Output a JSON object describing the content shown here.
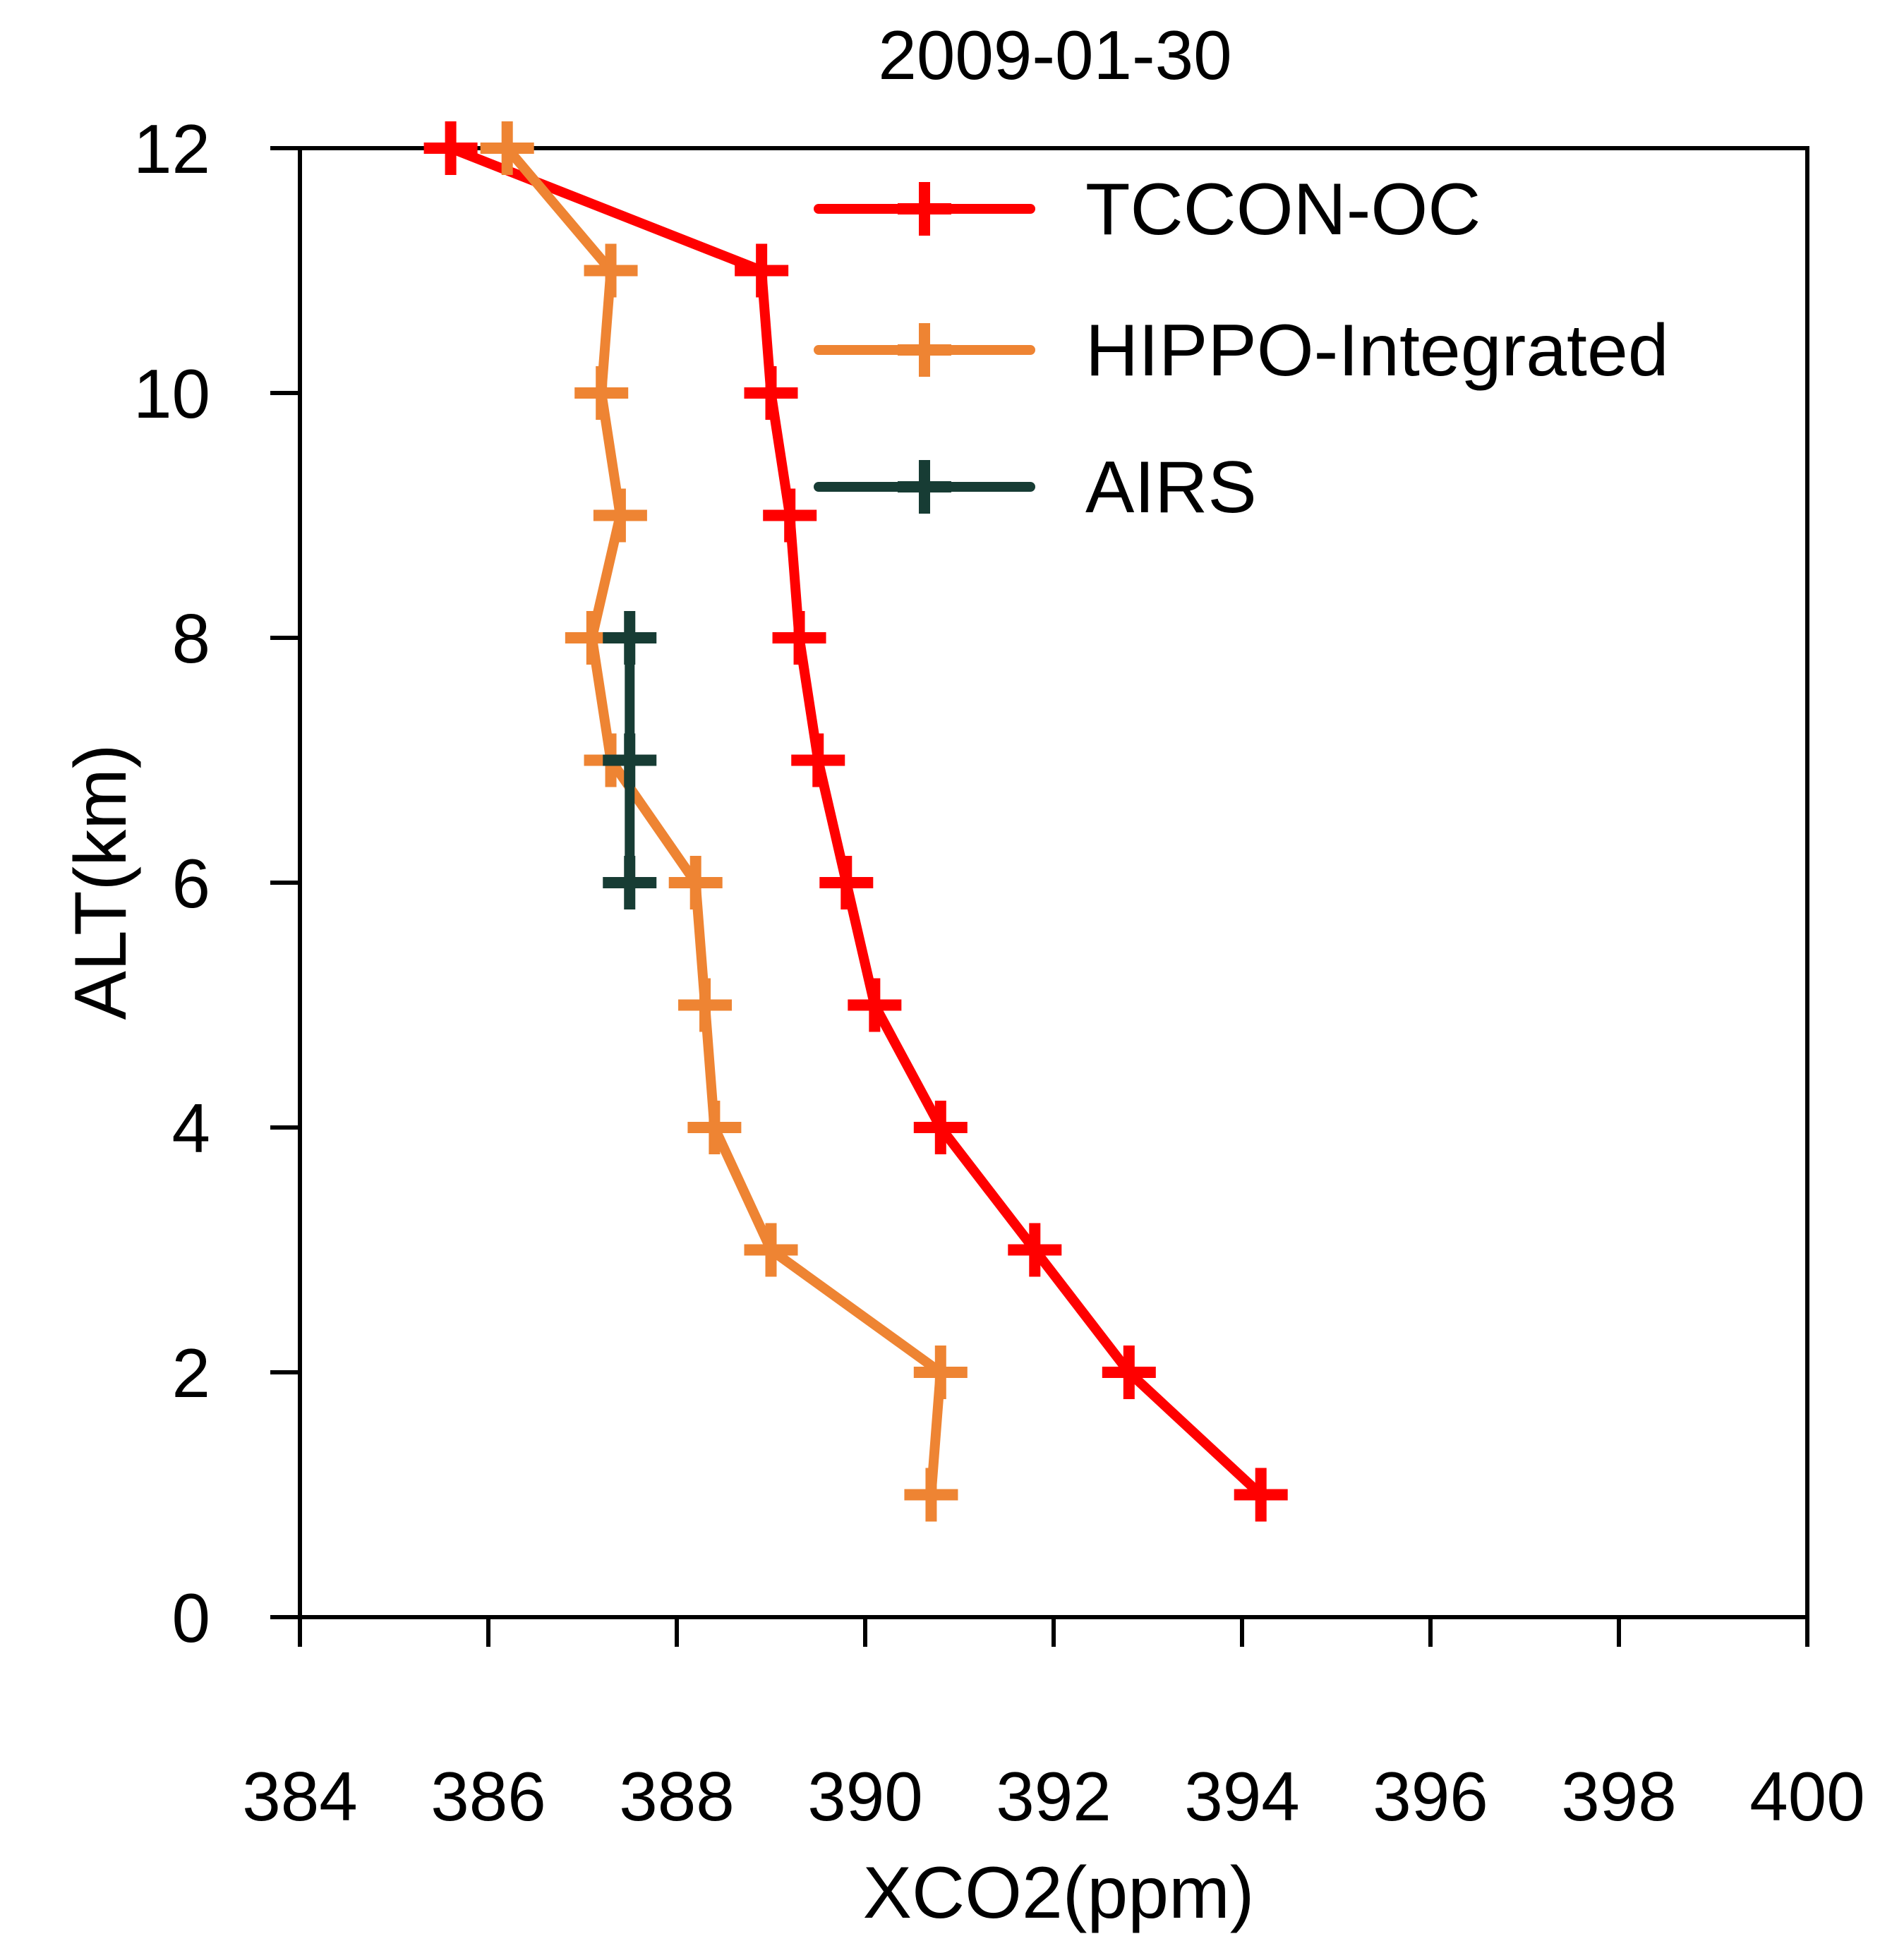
{
  "chart_data": {
    "type": "line",
    "title": "2009-01-30",
    "xlabel": "XCO2(ppm)",
    "ylabel": "ALT(km)",
    "xlim": [
      384,
      400
    ],
    "ylim": [
      0,
      12
    ],
    "xticks": [
      384,
      386,
      388,
      390,
      392,
      394,
      396,
      398,
      400
    ],
    "yticks": [
      0,
      2,
      4,
      6,
      8,
      10,
      12
    ],
    "grid": false,
    "legend_position": "top-right",
    "series": [
      {
        "name": "TCCON-OC",
        "color": "#ff0000",
        "marker": "plus",
        "x": [
          394.2,
          392.8,
          391.8,
          390.8,
          390.1,
          389.8,
          389.5,
          389.3,
          389.2,
          389.0,
          388.9,
          385.6
        ],
        "y": [
          1,
          2,
          3,
          4,
          5,
          6,
          7,
          8,
          9,
          10,
          11,
          12
        ]
      },
      {
        "name": "HIPPO-Integrated",
        "color": "#ee8433",
        "marker": "plus",
        "x": [
          390.7,
          390.8,
          389.0,
          388.4,
          388.3,
          388.2,
          387.3,
          387.1,
          387.4,
          387.2,
          387.3,
          386.2
        ],
        "y": [
          1,
          2,
          3,
          4,
          5,
          6,
          7,
          8,
          9,
          10,
          11,
          12
        ]
      },
      {
        "name": "AIRS",
        "color": "#173c34",
        "marker": "plus",
        "x": [
          387.5,
          387.5,
          387.5
        ],
        "y": [
          6,
          7,
          8
        ]
      }
    ]
  }
}
